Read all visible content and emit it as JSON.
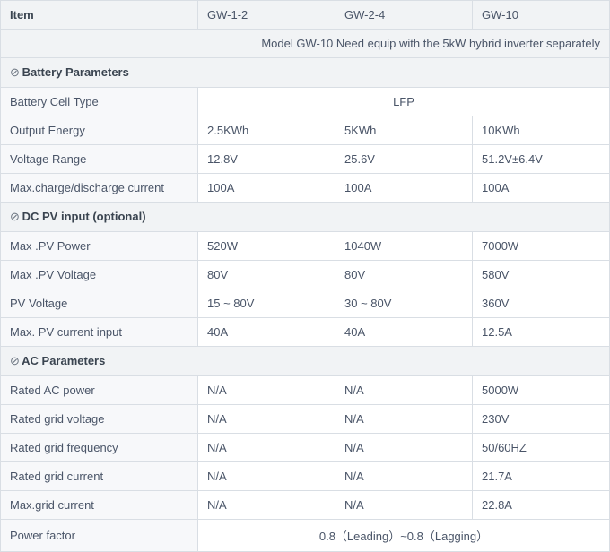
{
  "header": {
    "item_label": "Item",
    "models": [
      "GW-1-2",
      "GW-2-4",
      "GW-10"
    ]
  },
  "note": "Model GW-10 Need equip with the 5kW hybrid inverter separately",
  "bullet_glyph": "⊘",
  "sections": [
    {
      "title": "Battery Parameters",
      "rows": [
        {
          "label": "Battery Cell Type",
          "merged": true,
          "value": "LFP"
        },
        {
          "label": "Output Energy",
          "values": [
            "2.5KWh",
            "5KWh",
            "10KWh"
          ]
        },
        {
          "label": "Voltage Range",
          "values": [
            "12.8V",
            "25.6V",
            "51.2V±6.4V"
          ]
        },
        {
          "label": "Max.charge/discharge current",
          "values": [
            "100A",
            "100A",
            "100A"
          ]
        }
      ]
    },
    {
      "title": "DC PV input (optional)",
      "rows": [
        {
          "label": "Max .PV Power",
          "values": [
            "520W",
            "1040W",
            "7000W"
          ]
        },
        {
          "label": "Max .PV Voltage",
          "values": [
            "80V",
            "80V",
            "580V"
          ]
        },
        {
          "label": "PV Voltage",
          "values": [
            "15 ~ 80V",
            "30 ~ 80V",
            "360V"
          ]
        },
        {
          "label": "Max. PV current input",
          "values": [
            "40A",
            "40A",
            "12.5A"
          ]
        }
      ]
    },
    {
      "title": "AC Parameters",
      "rows": [
        {
          "label": "Rated AC power",
          "values": [
            "N/A",
            "N/A",
            "5000W"
          ]
        },
        {
          "label": "Rated grid voltage",
          "values": [
            "N/A",
            "N/A",
            "230V"
          ]
        },
        {
          "label": "Rated grid frequency",
          "values": [
            "N/A",
            "N/A",
            "50/60HZ"
          ]
        },
        {
          "label": "Rated grid current",
          "values": [
            "N/A",
            "N/A",
            "21.7A"
          ]
        },
        {
          "label": "Max.grid current",
          "values": [
            "N/A",
            "N/A",
            "22.8A"
          ]
        },
        {
          "label": "Power factor",
          "merged": true,
          "value": "0.8（Leading）~0.8（Lagging）"
        }
      ]
    }
  ]
}
